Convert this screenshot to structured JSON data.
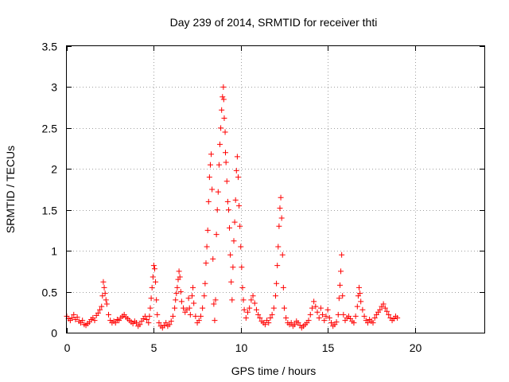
{
  "chart_data": {
    "type": "scatter",
    "title": "Day 239 of 2014, SRMTID for receiver thti",
    "xlabel": "GPS time / hours",
    "ylabel": "SRMTID / TECUs",
    "xlim": [
      0,
      24
    ],
    "ylim": [
      0,
      3.5
    ],
    "xticks": [
      0,
      5,
      10,
      15,
      20
    ],
    "xtick_labels": [
      "0",
      "5",
      "10",
      "15",
      "20"
    ],
    "yticks": [
      0,
      0.5,
      1,
      1.5,
      2,
      2.5,
      3,
      3.5
    ],
    "ytick_labels": [
      "0",
      "0.5",
      "1",
      "1.5",
      "2",
      "2.5",
      "3",
      "3.5"
    ],
    "grid": true,
    "marker": "+",
    "color": "#ff0000",
    "series": [
      {
        "name": "SRMTID",
        "points": [
          [
            0.0,
            0.2
          ],
          [
            0.1,
            0.17
          ],
          [
            0.2,
            0.15
          ],
          [
            0.3,
            0.18
          ],
          [
            0.4,
            0.22
          ],
          [
            0.5,
            0.16
          ],
          [
            0.6,
            0.19
          ],
          [
            0.7,
            0.14
          ],
          [
            0.8,
            0.12
          ],
          [
            0.9,
            0.15
          ],
          [
            1.0,
            0.1
          ],
          [
            1.1,
            0.09
          ],
          [
            1.2,
            0.11
          ],
          [
            1.3,
            0.13
          ],
          [
            1.4,
            0.16
          ],
          [
            1.5,
            0.18
          ],
          [
            1.6,
            0.15
          ],
          [
            1.7,
            0.21
          ],
          [
            1.8,
            0.24
          ],
          [
            1.9,
            0.28
          ],
          [
            2.0,
            0.32
          ],
          [
            2.05,
            0.45
          ],
          [
            2.1,
            0.62
          ],
          [
            2.15,
            0.55
          ],
          [
            2.2,
            0.48
          ],
          [
            2.25,
            0.4
          ],
          [
            2.3,
            0.35
          ],
          [
            2.4,
            0.22
          ],
          [
            2.5,
            0.15
          ],
          [
            2.6,
            0.12
          ],
          [
            2.7,
            0.14
          ],
          [
            2.8,
            0.12
          ],
          [
            2.9,
            0.16
          ],
          [
            3.0,
            0.15
          ],
          [
            3.1,
            0.18
          ],
          [
            3.2,
            0.2
          ],
          [
            3.3,
            0.22
          ],
          [
            3.4,
            0.19
          ],
          [
            3.5,
            0.17
          ],
          [
            3.6,
            0.15
          ],
          [
            3.7,
            0.13
          ],
          [
            3.8,
            0.11
          ],
          [
            3.9,
            0.14
          ],
          [
            4.0,
            0.12
          ],
          [
            4.1,
            0.08
          ],
          [
            4.2,
            0.1
          ],
          [
            4.3,
            0.14
          ],
          [
            4.4,
            0.17
          ],
          [
            4.5,
            0.2
          ],
          [
            4.6,
            0.16
          ],
          [
            4.7,
            0.12
          ],
          [
            4.75,
            0.2
          ],
          [
            4.8,
            0.3
          ],
          [
            4.85,
            0.42
          ],
          [
            4.9,
            0.55
          ],
          [
            4.95,
            0.68
          ],
          [
            5.0,
            0.82
          ],
          [
            5.05,
            0.78
          ],
          [
            5.1,
            0.62
          ],
          [
            5.15,
            0.4
          ],
          [
            5.2,
            0.22
          ],
          [
            5.3,
            0.12
          ],
          [
            5.4,
            0.08
          ],
          [
            5.5,
            0.06
          ],
          [
            5.6,
            0.09
          ],
          [
            5.7,
            0.12
          ],
          [
            5.8,
            0.08
          ],
          [
            5.9,
            0.1
          ],
          [
            6.0,
            0.14
          ],
          [
            6.1,
            0.2
          ],
          [
            6.2,
            0.3
          ],
          [
            6.25,
            0.4
          ],
          [
            6.3,
            0.48
          ],
          [
            6.35,
            0.55
          ],
          [
            6.4,
            0.65
          ],
          [
            6.45,
            0.75
          ],
          [
            6.5,
            0.68
          ],
          [
            6.55,
            0.5
          ],
          [
            6.6,
            0.38
          ],
          [
            6.7,
            0.3
          ],
          [
            6.8,
            0.25
          ],
          [
            6.9,
            0.28
          ],
          [
            7.0,
            0.42
          ],
          [
            7.05,
            0.3
          ],
          [
            7.1,
            0.22
          ],
          [
            7.2,
            0.45
          ],
          [
            7.25,
            0.55
          ],
          [
            7.3,
            0.36
          ],
          [
            7.4,
            0.2
          ],
          [
            7.5,
            0.12
          ],
          [
            7.6,
            0.15
          ],
          [
            7.7,
            0.2
          ],
          [
            7.8,
            0.3
          ],
          [
            7.9,
            0.45
          ],
          [
            7.95,
            0.6
          ],
          [
            8.0,
            0.85
          ],
          [
            8.05,
            1.05
          ],
          [
            8.1,
            1.25
          ],
          [
            8.15,
            1.6
          ],
          [
            8.2,
            1.9
          ],
          [
            8.25,
            2.05
          ],
          [
            8.3,
            2.18
          ],
          [
            8.35,
            1.75
          ],
          [
            8.4,
            0.9
          ],
          [
            8.45,
            0.35
          ],
          [
            8.5,
            0.15
          ],
          [
            8.55,
            0.4
          ],
          [
            8.6,
            1.2
          ],
          [
            8.65,
            1.5
          ],
          [
            8.7,
            1.72
          ],
          [
            8.75,
            2.05
          ],
          [
            8.8,
            2.3
          ],
          [
            8.85,
            2.5
          ],
          [
            8.9,
            2.72
          ],
          [
            8.95,
            2.88
          ],
          [
            9.0,
            3.0
          ],
          [
            9.02,
            2.85
          ],
          [
            9.05,
            2.62
          ],
          [
            9.1,
            2.45
          ],
          [
            9.12,
            2.2
          ],
          [
            9.15,
            2.08
          ],
          [
            9.2,
            1.85
          ],
          [
            9.25,
            1.6
          ],
          [
            9.3,
            1.5
          ],
          [
            9.35,
            1.28
          ],
          [
            9.4,
            0.95
          ],
          [
            9.45,
            0.62
          ],
          [
            9.5,
            0.4
          ],
          [
            9.55,
            0.8
          ],
          [
            9.6,
            1.12
          ],
          [
            9.65,
            1.35
          ],
          [
            9.7,
            1.62
          ],
          [
            9.75,
            1.98
          ],
          [
            9.8,
            2.15
          ],
          [
            9.85,
            1.9
          ],
          [
            9.9,
            1.55
          ],
          [
            9.95,
            1.3
          ],
          [
            10.0,
            1.05
          ],
          [
            10.05,
            0.8
          ],
          [
            10.1,
            0.55
          ],
          [
            10.15,
            0.4
          ],
          [
            10.2,
            0.28
          ],
          [
            10.3,
            0.18
          ],
          [
            10.4,
            0.25
          ],
          [
            10.5,
            0.3
          ],
          [
            10.6,
            0.4
          ],
          [
            10.7,
            0.45
          ],
          [
            10.8,
            0.36
          ],
          [
            10.9,
            0.28
          ],
          [
            11.0,
            0.22
          ],
          [
            11.1,
            0.18
          ],
          [
            11.2,
            0.14
          ],
          [
            11.3,
            0.12
          ],
          [
            11.4,
            0.1
          ],
          [
            11.5,
            0.15
          ],
          [
            11.6,
            0.12
          ],
          [
            11.7,
            0.18
          ],
          [
            11.8,
            0.22
          ],
          [
            11.9,
            0.3
          ],
          [
            12.0,
            0.45
          ],
          [
            12.05,
            0.6
          ],
          [
            12.1,
            0.82
          ],
          [
            12.15,
            1.05
          ],
          [
            12.2,
            1.3
          ],
          [
            12.25,
            1.52
          ],
          [
            12.3,
            1.65
          ],
          [
            12.35,
            1.4
          ],
          [
            12.4,
            0.95
          ],
          [
            12.45,
            0.55
          ],
          [
            12.5,
            0.3
          ],
          [
            12.6,
            0.18
          ],
          [
            12.7,
            0.12
          ],
          [
            12.8,
            0.1
          ],
          [
            12.9,
            0.12
          ],
          [
            13.0,
            0.08
          ],
          [
            13.1,
            0.1
          ],
          [
            13.2,
            0.14
          ],
          [
            13.3,
            0.12
          ],
          [
            13.4,
            0.09
          ],
          [
            13.5,
            0.06
          ],
          [
            13.6,
            0.08
          ],
          [
            13.7,
            0.1
          ],
          [
            13.8,
            0.12
          ],
          [
            13.9,
            0.15
          ],
          [
            14.0,
            0.22
          ],
          [
            14.1,
            0.3
          ],
          [
            14.2,
            0.38
          ],
          [
            14.3,
            0.32
          ],
          [
            14.4,
            0.25
          ],
          [
            14.5,
            0.18
          ],
          [
            14.6,
            0.3
          ],
          [
            14.7,
            0.22
          ],
          [
            14.8,
            0.15
          ],
          [
            14.9,
            0.2
          ],
          [
            15.0,
            0.28
          ],
          [
            15.1,
            0.18
          ],
          [
            15.2,
            0.12
          ],
          [
            15.3,
            0.08
          ],
          [
            15.4,
            0.1
          ],
          [
            15.5,
            0.13
          ],
          [
            15.6,
            0.22
          ],
          [
            15.65,
            0.42
          ],
          [
            15.7,
            0.58
          ],
          [
            15.75,
            0.75
          ],
          [
            15.8,
            0.95
          ],
          [
            15.85,
            0.45
          ],
          [
            15.9,
            0.22
          ],
          [
            16.0,
            0.15
          ],
          [
            16.1,
            0.18
          ],
          [
            16.2,
            0.2
          ],
          [
            16.3,
            0.17
          ],
          [
            16.4,
            0.14
          ],
          [
            16.5,
            0.12
          ],
          [
            16.6,
            0.2
          ],
          [
            16.7,
            0.32
          ],
          [
            16.75,
            0.45
          ],
          [
            16.8,
            0.55
          ],
          [
            16.85,
            0.48
          ],
          [
            16.9,
            0.38
          ],
          [
            17.0,
            0.28
          ],
          [
            17.1,
            0.2
          ],
          [
            17.2,
            0.15
          ],
          [
            17.3,
            0.12
          ],
          [
            17.4,
            0.16
          ],
          [
            17.5,
            0.14
          ],
          [
            17.6,
            0.12
          ],
          [
            17.7,
            0.18
          ],
          [
            17.8,
            0.22
          ],
          [
            17.9,
            0.25
          ],
          [
            18.0,
            0.28
          ],
          [
            18.1,
            0.32
          ],
          [
            18.2,
            0.35
          ],
          [
            18.3,
            0.3
          ],
          [
            18.4,
            0.26
          ],
          [
            18.5,
            0.22
          ],
          [
            18.6,
            0.18
          ],
          [
            18.7,
            0.15
          ],
          [
            18.8,
            0.17
          ],
          [
            18.9,
            0.2
          ],
          [
            19.0,
            0.18
          ]
        ]
      }
    ]
  }
}
